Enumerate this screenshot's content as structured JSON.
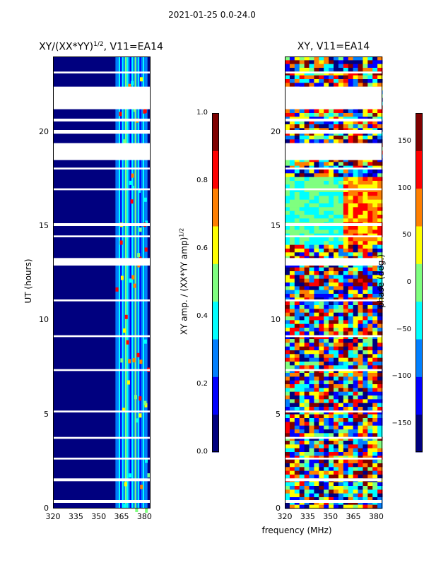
{
  "suptitle": "2021-01-25 0.0-24.0",
  "colors": {
    "jet": [
      "#00007f",
      "#0000ff",
      "#007fff",
      "#00ffff",
      "#7fff7f",
      "#ffff00",
      "#ff7f00",
      "#ff0000",
      "#7f0000"
    ],
    "gap": "#ffffff"
  },
  "chart_data": [
    {
      "type": "heatmap",
      "title": "XY/(XX*YY)",
      "title_exponent": "1/2",
      "title_suffix": ", V11=EA14",
      "xlabel": "",
      "ylabel": "UT (hours)",
      "x_ticks": [
        "320",
        "335",
        "350",
        "365",
        "380"
      ],
      "x_tick_values": [
        320,
        335,
        350,
        365,
        380
      ],
      "xlim": [
        320,
        384
      ],
      "y_ticks": [
        "0",
        "5",
        "10",
        "15",
        "20"
      ],
      "y_tick_values": [
        0,
        5,
        10,
        15,
        20
      ],
      "ylim": [
        0,
        24
      ],
      "data_gaps_hours": [
        [
          0.3,
          0.45
        ],
        [
          1.45,
          1.6
        ],
        [
          2.6,
          2.7
        ],
        [
          3.7,
          3.8
        ],
        [
          5.1,
          5.2
        ],
        [
          7.3,
          7.4
        ],
        [
          9.1,
          9.2
        ],
        [
          11.0,
          11.1
        ],
        [
          12.9,
          13.3
        ],
        [
          14.4,
          14.5
        ],
        [
          15.0,
          15.15
        ],
        [
          16.9,
          17.0
        ],
        [
          18.0,
          18.1
        ],
        [
          18.5,
          19.4
        ],
        [
          19.9,
          20.1
        ],
        [
          20.55,
          20.7
        ],
        [
          21.2,
          22.4
        ],
        [
          23.1,
          23.2
        ]
      ],
      "active_band_mhz": [
        361,
        382
      ],
      "description": "low normalized amplitude below 361 MHz, elevated amplitude channels between 361 and 382 MHz",
      "colorbar": {
        "label": "XY amp. / (XX*YY amp)",
        "label_exponent": "1/2",
        "range": [
          0.0,
          1.0
        ],
        "ticks": [
          "0.0",
          "0.2",
          "0.4",
          "0.6",
          "0.8",
          "1.0"
        ],
        "tick_values": [
          0.0,
          0.2,
          0.4,
          0.6,
          0.8,
          1.0
        ]
      }
    },
    {
      "type": "heatmap",
      "title": "XY, V11=EA14",
      "xlabel": "frequency (MHz)",
      "ylabel": "",
      "x_ticks": [
        "320",
        "335",
        "350",
        "365",
        "380"
      ],
      "x_tick_values": [
        320,
        335,
        350,
        365,
        380
      ],
      "xlim": [
        320,
        384
      ],
      "y_ticks": [
        "0",
        "5",
        "10",
        "15",
        "20"
      ],
      "y_tick_values": [
        0,
        5,
        10,
        15,
        20
      ],
      "ylim": [
        0,
        24
      ],
      "data_gaps_hours": [
        [
          0.3,
          0.45
        ],
        [
          1.45,
          1.6
        ],
        [
          2.6,
          2.7
        ],
        [
          3.7,
          3.8
        ],
        [
          5.1,
          5.2
        ],
        [
          7.3,
          7.4
        ],
        [
          9.1,
          9.2
        ],
        [
          11.0,
          11.1
        ],
        [
          12.9,
          13.3
        ],
        [
          14.4,
          14.5
        ],
        [
          15.0,
          15.15
        ],
        [
          16.9,
          17.0
        ],
        [
          18.0,
          18.1
        ],
        [
          18.5,
          19.4
        ],
        [
          19.9,
          20.1
        ],
        [
          20.55,
          20.7
        ],
        [
          21.2,
          22.4
        ],
        [
          23.1,
          23.2
        ]
      ],
      "smooth_phase_hours": [
        14.0,
        17.5
      ],
      "description": "noisy phase across band with smoother phase between 14 and 17.5 UT",
      "colorbar": {
        "label": "phase (deg.)",
        "range": [
          -180,
          180
        ],
        "ticks": [
          "−150",
          "−100",
          "−50",
          "0",
          "50",
          "100",
          "150"
        ],
        "tick_values": [
          -150,
          -100,
          -50,
          0,
          50,
          100,
          150
        ]
      }
    }
  ]
}
